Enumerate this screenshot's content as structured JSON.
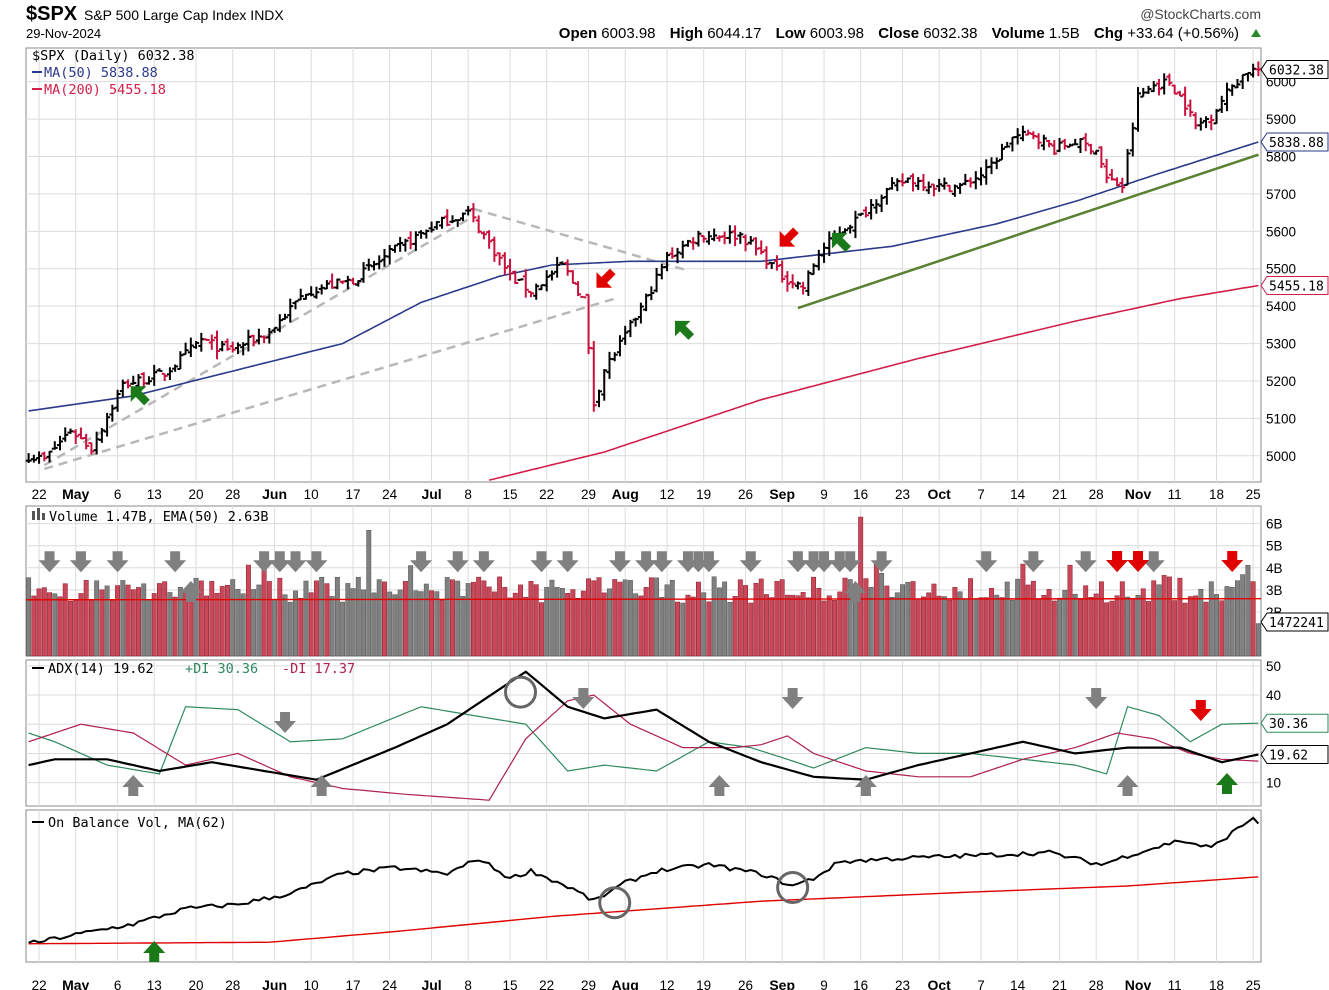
{
  "header": {
    "symbol": "$SPX",
    "description": "S&P 500 Large Cap Index INDX",
    "date": "29-Nov-2024",
    "brand": "@StockCharts.com",
    "open_label": "Open",
    "open": "6003.98",
    "high_label": "High",
    "high": "6044.17",
    "low_label": "Low",
    "low": "6003.98",
    "close_label": "Close",
    "close": "6032.38",
    "volume_label": "Volume",
    "volume": "1.5B",
    "chg_label": "Chg",
    "chg": "+33.64 (+0.56%)"
  },
  "colors": {
    "up": "#000000",
    "down": "#c8103c",
    "ma50": "#2b3a8a",
    "ma200": "#d11f48",
    "trend": "#5a8030",
    "channel": "#b8b8b8",
    "vol_gray": "#808080",
    "vol_red": "#c8485a",
    "plus_di": "#2e8a5e",
    "minus_di": "#b02050",
    "grid": "#dcdcdc",
    "green_arrow": "#1a7a1a",
    "red_arrow": "#e00000",
    "gray_arrow": "#808080"
  },
  "legend": {
    "price": "$SPX (Daily) 6032.38",
    "ma50": "MA(50) 5838.88",
    "ma200": "MA(200) 5455.18",
    "volume": "Volume 1.47B, EMA(50) 2.63B",
    "adx": "ADX(14) 19.62",
    "plus_di": "+DI 30.36",
    "minus_di": "-DI 17.37",
    "obv": "On Balance Vol, MA(62)"
  },
  "value_tags": {
    "price": "6032.38",
    "ma50": "5838.88",
    "ma200": "5455.18",
    "volume": "1472241",
    "plus_di": "30.36",
    "adx": "19.62"
  },
  "chart_data": {
    "type": "candlestick",
    "x_labels": [
      "22",
      "May",
      "6",
      "13",
      "20",
      "28",
      "Jun",
      "10",
      "17",
      "24",
      "Jul",
      "8",
      "15",
      "22",
      "29",
      "Aug",
      "12",
      "19",
      "26",
      "Sep",
      "9",
      "16",
      "23",
      "Oct",
      "7",
      "14",
      "21",
      "28",
      "Nov",
      "11",
      "18",
      "25"
    ],
    "x_label_bold": [
      false,
      true,
      false,
      false,
      false,
      false,
      true,
      false,
      false,
      false,
      true,
      false,
      false,
      false,
      false,
      true,
      false,
      false,
      false,
      true,
      false,
      false,
      false,
      true,
      false,
      false,
      false,
      false,
      true,
      false,
      false,
      false
    ],
    "price_ticks": [
      "5000",
      "5100",
      "5200",
      "5300",
      "5400",
      "5500",
      "5600",
      "5700",
      "5800",
      "5900",
      "6000"
    ],
    "price_ylim": [
      4930,
      6090
    ],
    "volume_ticks": [
      "2B",
      "3B",
      "4B",
      "5B",
      "6B"
    ],
    "volume_ylim": [
      0,
      6.8
    ],
    "adx_ticks": [
      "10",
      "20",
      "30",
      "40",
      "50"
    ],
    "adx_ylim": [
      2,
      52
    ],
    "price_anchors": [
      [
        0,
        5000
      ],
      [
        3,
        4990
      ],
      [
        8,
        5070
      ],
      [
        12,
        5020
      ],
      [
        18,
        5190
      ],
      [
        26,
        5220
      ],
      [
        33,
        5310
      ],
      [
        38,
        5280
      ],
      [
        46,
        5330
      ],
      [
        53,
        5440
      ],
      [
        62,
        5470
      ],
      [
        70,
        5550
      ],
      [
        78,
        5620
      ],
      [
        84,
        5650
      ],
      [
        88,
        5570
      ],
      [
        92,
        5480
      ],
      [
        96,
        5440
      ],
      [
        102,
        5510
      ],
      [
        106,
        5420
      ],
      [
        108,
        5140
      ],
      [
        110,
        5230
      ],
      [
        114,
        5320
      ],
      [
        118,
        5420
      ],
      [
        122,
        5530
      ],
      [
        128,
        5590
      ],
      [
        136,
        5590
      ],
      [
        140,
        5540
      ],
      [
        144,
        5480
      ],
      [
        148,
        5450
      ],
      [
        151,
        5540
      ],
      [
        155,
        5600
      ],
      [
        159,
        5640
      ],
      [
        163,
        5700
      ],
      [
        168,
        5740
      ],
      [
        174,
        5720
      ],
      [
        178,
        5720
      ],
      [
        183,
        5760
      ],
      [
        188,
        5850
      ],
      [
        192,
        5860
      ],
      [
        196,
        5820
      ],
      [
        200,
        5840
      ],
      [
        204,
        5820
      ],
      [
        206,
        5740
      ],
      [
        209,
        5720
      ],
      [
        212,
        5960
      ],
      [
        215,
        5990
      ],
      [
        218,
        6000
      ],
      [
        221,
        5940
      ],
      [
        223,
        5880
      ],
      [
        226,
        5910
      ],
      [
        230,
        5990
      ],
      [
        233,
        6030
      ],
      [
        235,
        6032.38
      ]
    ],
    "ma50_anchors": [
      [
        0,
        5120
      ],
      [
        20,
        5160
      ],
      [
        40,
        5230
      ],
      [
        60,
        5300
      ],
      [
        75,
        5410
      ],
      [
        90,
        5480
      ],
      [
        100,
        5510
      ],
      [
        115,
        5520
      ],
      [
        140,
        5520
      ],
      [
        165,
        5560
      ],
      [
        185,
        5620
      ],
      [
        200,
        5680
      ],
      [
        215,
        5750
      ],
      [
        235,
        5838.88
      ]
    ],
    "ma200_anchors": [
      [
        88,
        4935
      ],
      [
        110,
        5010
      ],
      [
        140,
        5150
      ],
      [
        170,
        5260
      ],
      [
        200,
        5360
      ],
      [
        220,
        5420
      ],
      [
        235,
        5455.18
      ]
    ],
    "volume": {
      "count": 236,
      "ema50": 2.63,
      "last": 1.47,
      "spikes": [
        [
          65,
          5.7
        ],
        [
          73,
          4.1
        ],
        [
          159,
          6.3
        ]
      ]
    },
    "adx_anchors": [
      [
        0,
        16
      ],
      [
        5,
        18
      ],
      [
        15,
        18
      ],
      [
        25,
        14
      ],
      [
        35,
        17
      ],
      [
        45,
        14
      ],
      [
        55,
        11
      ],
      [
        70,
        22
      ],
      [
        80,
        30
      ],
      [
        90,
        42
      ],
      [
        95,
        48
      ],
      [
        103,
        36
      ],
      [
        110,
        32
      ],
      [
        120,
        35
      ],
      [
        130,
        24
      ],
      [
        140,
        17
      ],
      [
        150,
        12
      ],
      [
        160,
        11
      ],
      [
        170,
        16
      ],
      [
        180,
        20
      ],
      [
        190,
        24
      ],
      [
        200,
        20
      ],
      [
        210,
        22
      ],
      [
        220,
        22
      ],
      [
        228,
        17
      ],
      [
        235,
        19.62
      ]
    ],
    "plus_di_anchors": [
      [
        0,
        27
      ],
      [
        5,
        24
      ],
      [
        15,
        16
      ],
      [
        25,
        13
      ],
      [
        30,
        36
      ],
      [
        40,
        35
      ],
      [
        50,
        24
      ],
      [
        60,
        25
      ],
      [
        75,
        36
      ],
      [
        85,
        33
      ],
      [
        95,
        30
      ],
      [
        103,
        14
      ],
      [
        110,
        16
      ],
      [
        120,
        14
      ],
      [
        130,
        24
      ],
      [
        138,
        22
      ],
      [
        145,
        18
      ],
      [
        150,
        15
      ],
      [
        160,
        22
      ],
      [
        170,
        20
      ],
      [
        180,
        20
      ],
      [
        190,
        18
      ],
      [
        200,
        16
      ],
      [
        206,
        13
      ],
      [
        210,
        36
      ],
      [
        216,
        33
      ],
      [
        222,
        24
      ],
      [
        228,
        30
      ],
      [
        235,
        30.36
      ]
    ],
    "minus_di_anchors": [
      [
        0,
        24
      ],
      [
        10,
        30
      ],
      [
        20,
        27
      ],
      [
        30,
        16
      ],
      [
        40,
        20
      ],
      [
        50,
        12
      ],
      [
        60,
        8
      ],
      [
        72,
        6
      ],
      [
        88,
        4
      ],
      [
        95,
        25
      ],
      [
        103,
        38
      ],
      [
        108,
        40
      ],
      [
        115,
        30
      ],
      [
        125,
        22
      ],
      [
        135,
        22
      ],
      [
        140,
        23
      ],
      [
        145,
        26
      ],
      [
        150,
        20
      ],
      [
        160,
        14
      ],
      [
        170,
        12
      ],
      [
        180,
        12
      ],
      [
        190,
        18
      ],
      [
        200,
        22
      ],
      [
        208,
        27
      ],
      [
        215,
        25
      ],
      [
        222,
        20
      ],
      [
        228,
        18
      ],
      [
        235,
        17.37
      ]
    ],
    "obv_anchors": [
      [
        0,
        0.12
      ],
      [
        12,
        0.2
      ],
      [
        20,
        0.25
      ],
      [
        30,
        0.35
      ],
      [
        40,
        0.38
      ],
      [
        50,
        0.45
      ],
      [
        60,
        0.58
      ],
      [
        70,
        0.62
      ],
      [
        80,
        0.58
      ],
      [
        86,
        0.68
      ],
      [
        92,
        0.55
      ],
      [
        96,
        0.6
      ],
      [
        104,
        0.48
      ],
      [
        108,
        0.4
      ],
      [
        114,
        0.52
      ],
      [
        120,
        0.6
      ],
      [
        130,
        0.64
      ],
      [
        140,
        0.58
      ],
      [
        146,
        0.5
      ],
      [
        150,
        0.55
      ],
      [
        155,
        0.66
      ],
      [
        165,
        0.68
      ],
      [
        180,
        0.7
      ],
      [
        195,
        0.72
      ],
      [
        205,
        0.64
      ],
      [
        210,
        0.7
      ],
      [
        220,
        0.8
      ],
      [
        226,
        0.75
      ],
      [
        234,
        0.95
      ],
      [
        235,
        0.92
      ]
    ],
    "obv_ma_anchors": [
      [
        0,
        0.12
      ],
      [
        46,
        0.13
      ],
      [
        70,
        0.2
      ],
      [
        100,
        0.3
      ],
      [
        140,
        0.4
      ],
      [
        180,
        0.46
      ],
      [
        210,
        0.5
      ],
      [
        235,
        0.56
      ]
    ]
  }
}
